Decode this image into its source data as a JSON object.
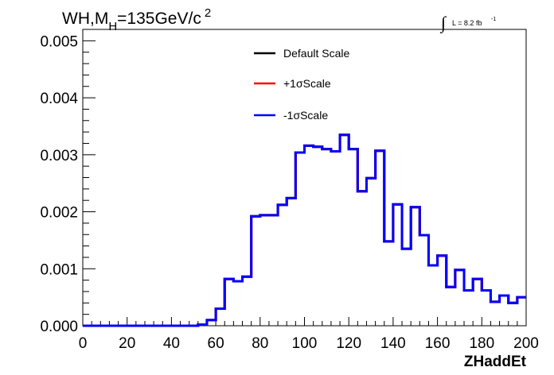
{
  "title": {
    "prefix": "WH,M",
    "subscript": "H",
    "value": "=135GeV/c",
    "superscript": "2"
  },
  "luminosity": {
    "integral": "∫",
    "text": "L = 8.2 fb",
    "exponent": "-1"
  },
  "legend": [
    {
      "label": "Default Scale",
      "color": "#000000"
    },
    {
      "label": "+1σScale",
      "color": "#ff0000"
    },
    {
      "label": "-1σScale",
      "color": "#0000ff"
    }
  ],
  "chart_data": {
    "type": "line",
    "step": true,
    "xlabel": "ZHaddEt",
    "ylabel": "",
    "xlim": [
      0,
      200
    ],
    "ylim": [
      0,
      0.0052
    ],
    "x_ticks": [
      "0",
      "20",
      "40",
      "60",
      "80",
      "100",
      "120",
      "140",
      "160",
      "180",
      "200"
    ],
    "x_tick_values": [
      0,
      20,
      40,
      60,
      80,
      100,
      120,
      140,
      160,
      180,
      200
    ],
    "y_ticks": [
      "0.000",
      "0.001",
      "0.002",
      "0.003",
      "0.004",
      "0.005"
    ],
    "y_tick_values": [
      0,
      0.001,
      0.002,
      0.003,
      0.004,
      0.005
    ],
    "bin_edges": [
      0,
      4,
      8,
      12,
      16,
      20,
      24,
      28,
      32,
      36,
      40,
      44,
      48,
      52,
      56,
      60,
      64,
      68,
      72,
      76,
      80,
      84,
      88,
      92,
      96,
      100,
      104,
      108,
      112,
      116,
      120,
      124,
      128,
      132,
      136,
      140,
      144,
      148,
      152,
      156,
      160,
      164,
      168,
      172,
      176,
      180,
      184,
      188,
      192,
      196,
      200
    ],
    "series": [
      {
        "name": "Default Scale",
        "color": "#000000",
        "values": [
          0,
          0,
          0,
          0,
          0,
          0,
          0,
          0,
          0,
          0,
          0,
          0,
          0,
          2e-05,
          0.0001,
          0.0003,
          0.00082,
          0.00078,
          0.00086,
          0.00192,
          0.00194,
          0.00194,
          0.00212,
          0.00224,
          0.00304,
          0.00316,
          0.00314,
          0.0031,
          0.00306,
          0.00335,
          0.0031,
          0.00236,
          0.00259,
          0.00307,
          0.00148,
          0.00213,
          0.00135,
          0.00208,
          0.00159,
          0.00106,
          0.00123,
          0.00068,
          0.00098,
          0.00062,
          0.00082,
          0.00062,
          0.00042,
          0.00053,
          0.0004,
          0.0005
        ]
      },
      {
        "name": "+1σScale",
        "color": "#ff0000",
        "values": [
          0,
          0,
          0,
          0,
          0,
          0,
          0,
          0,
          0,
          0,
          0,
          0,
          0,
          2e-05,
          0.0001,
          0.0003,
          0.00082,
          0.00078,
          0.00086,
          0.00192,
          0.00194,
          0.00194,
          0.00212,
          0.00224,
          0.00304,
          0.00316,
          0.00314,
          0.0031,
          0.00306,
          0.00335,
          0.0031,
          0.00236,
          0.00259,
          0.00307,
          0.00148,
          0.00213,
          0.00135,
          0.00208,
          0.00159,
          0.00106,
          0.00123,
          0.00068,
          0.00098,
          0.00062,
          0.00082,
          0.00062,
          0.00042,
          0.00053,
          0.0004,
          0.0005
        ]
      },
      {
        "name": "-1σScale",
        "color": "#0000ff",
        "values": [
          0,
          0,
          0,
          0,
          0,
          0,
          0,
          0,
          0,
          0,
          0,
          0,
          0,
          2e-05,
          0.0001,
          0.0003,
          0.00082,
          0.00078,
          0.00086,
          0.00192,
          0.00194,
          0.00194,
          0.00212,
          0.00224,
          0.00304,
          0.00316,
          0.00314,
          0.0031,
          0.00306,
          0.00335,
          0.0031,
          0.00236,
          0.00259,
          0.00307,
          0.00148,
          0.00213,
          0.00135,
          0.00208,
          0.00159,
          0.00106,
          0.00123,
          0.00068,
          0.00098,
          0.00062,
          0.00082,
          0.00062,
          0.00042,
          0.00053,
          0.0004,
          0.0005
        ]
      }
    ],
    "grid": false,
    "legend_position": "top-center"
  }
}
